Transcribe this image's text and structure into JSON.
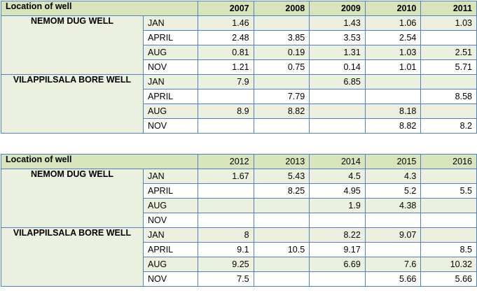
{
  "tables": [
    {
      "header": {
        "location_label": "Location of well",
        "years": [
          "2007",
          "2008",
          "2009",
          "2010",
          "2011"
        ]
      },
      "wells": [
        {
          "name": "NEMOM DUG WELL",
          "rows": [
            {
              "month": "JAN",
              "values": [
                "1.46",
                "",
                "1.43",
                "1.06",
                "1.03"
              ]
            },
            {
              "month": "APRIL",
              "values": [
                "2.48",
                "3.85",
                "3.53",
                "2.54",
                ""
              ]
            },
            {
              "month": "AUG",
              "values": [
                "0.81",
                "0.19",
                "1.31",
                "1.03",
                "2.51"
              ]
            },
            {
              "month": "NOV",
              "values": [
                "1.21",
                "0.75",
                "0.14",
                "1.01",
                "5.71"
              ]
            }
          ]
        },
        {
          "name": "VILAPPILSALA BORE WELL",
          "rows": [
            {
              "month": "JAN",
              "values": [
                "7.9",
                "",
                "6.85",
                "",
                ""
              ]
            },
            {
              "month": "APRIL",
              "values": [
                "",
                "7.79",
                "",
                "",
                "8.58"
              ]
            },
            {
              "month": "AUG",
              "values": [
                "8.9",
                "8.82",
                "",
                "8.18",
                ""
              ]
            },
            {
              "month": "NOV",
              "values": [
                "",
                "",
                "",
                "8.82",
                "8.2"
              ]
            }
          ]
        }
      ]
    },
    {
      "header": {
        "location_label": "Location of well",
        "years": [
          "2012",
          "2013",
          "2014",
          "2015",
          "2016"
        ]
      },
      "wells": [
        {
          "name": "NEMOM DUG WELL",
          "rows": [
            {
              "month": "JAN",
              "values": [
                "1.67",
                "5.43",
                "4.5",
                "4.3",
                ""
              ]
            },
            {
              "month": "APRIL",
              "values": [
                "",
                "8.25",
                "4.95",
                "5.2",
                "5.5"
              ]
            },
            {
              "month": "AUG",
              "values": [
                "",
                "",
                "1.9",
                "4.38",
                ""
              ]
            },
            {
              "month": "NOV",
              "values": [
                "",
                "",
                "",
                "",
                ""
              ]
            }
          ]
        },
        {
          "name": "VILAPPILSALA BORE WELL",
          "rows": [
            {
              "month": "JAN",
              "values": [
                "8",
                "",
                "8.22",
                "9.07",
                ""
              ]
            },
            {
              "month": "APRIL",
              "values": [
                "9.1",
                "10.5",
                "9.17",
                "",
                "8.5"
              ]
            },
            {
              "month": "AUG",
              "values": [
                "9.25",
                "",
                "6.69",
                "7.6",
                "10.32"
              ]
            },
            {
              "month": "NOV",
              "values": [
                "7.5",
                "",
                "",
                "5.66",
                "5.66"
              ]
            }
          ]
        }
      ]
    }
  ]
}
